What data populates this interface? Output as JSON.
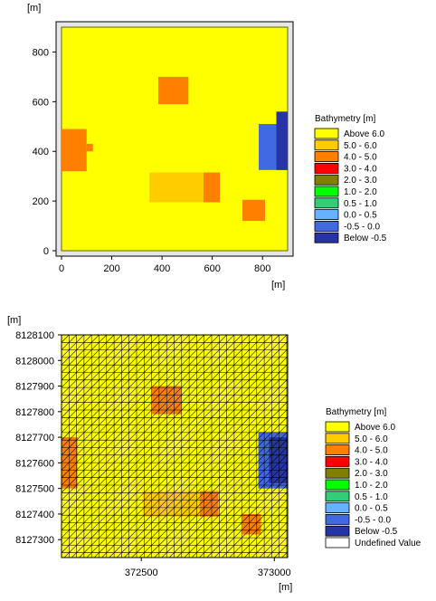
{
  "top_plot": {
    "y_unit_label": "[m]",
    "x_unit_label": "[m]"
  },
  "bottom_plot": {
    "y_unit_label": "[m]",
    "x_unit_label": "[m]"
  },
  "chart_data": [
    {
      "type": "heatmap",
      "title": "",
      "xlabel": "[m]",
      "ylabel": "[m]",
      "xlim": [
        0,
        900
      ],
      "ylim": [
        0,
        900
      ],
      "x_ticks": [
        "0",
        "200",
        "400",
        "600",
        "800"
      ],
      "x_tick_values": [
        0,
        200,
        400,
        600,
        800
      ],
      "y_ticks": [
        "0",
        "200",
        "400",
        "600",
        "800"
      ],
      "y_tick_values": [
        0,
        200,
        400,
        600,
        800
      ],
      "background_class": "Above 6.0",
      "regions": [
        {
          "class": "4.0 - 5.0",
          "x0": 385,
          "x1": 505,
          "y0": 590,
          "y1": 700
        },
        {
          "class": "4.0 - 5.0",
          "x0": 0,
          "x1": 100,
          "y0": 320,
          "y1": 490
        },
        {
          "class": "4.0 - 5.0",
          "x0": 100,
          "x1": 125,
          "y0": 400,
          "y1": 430
        },
        {
          "class": "5.0 - 6.0",
          "x0": 350,
          "x1": 565,
          "y0": 195,
          "y1": 315
        },
        {
          "class": "4.0 - 5.0",
          "x0": 565,
          "x1": 630,
          "y0": 195,
          "y1": 315
        },
        {
          "class": "4.0 - 5.0",
          "x0": 720,
          "x1": 810,
          "y0": 120,
          "y1": 205
        },
        {
          "class": "-0.5 - 0.0",
          "x0": 785,
          "x1": 900,
          "y0": 325,
          "y1": 510
        },
        {
          "class": "Below -0.5",
          "x0": 855,
          "x1": 900,
          "y0": 325,
          "y1": 560
        }
      ],
      "legend": {
        "title": "Bathymetry [m]",
        "position": "right",
        "entries": [
          {
            "label": "Above  6.0",
            "color": "#FFFF00"
          },
          {
            "label": "5.0 -  6.0",
            "color": "#FFCC00"
          },
          {
            "label": "4.0 -  5.0",
            "color": "#FF7F00"
          },
          {
            "label": "3.0 -  4.0",
            "color": "#FF0000"
          },
          {
            "label": "2.0 -  3.0",
            "color": "#808000"
          },
          {
            "label": "1.0 -  2.0",
            "color": "#00FF00"
          },
          {
            "label": "0.5 -  1.0",
            "color": "#33CC77"
          },
          {
            "label": "0.0 -  0.5",
            "color": "#66B2FF"
          },
          {
            "label": "-0.5 -  0.0",
            "color": "#4169E1"
          },
          {
            "label": "Below -0.5",
            "color": "#2634A6"
          }
        ]
      }
    },
    {
      "type": "heatmap",
      "title": "",
      "xlabel": "[m]",
      "ylabel": "[m]",
      "mesh": "triangular",
      "xlim": [
        372200,
        373050
      ],
      "ylim": [
        8127230,
        8128100
      ],
      "x_ticks": [
        "372500",
        "373000"
      ],
      "x_tick_values": [
        372500,
        373000
      ],
      "y_ticks": [
        "8128100",
        "8128000",
        "8127900",
        "8127800",
        "8127700",
        "8127600",
        "8127500",
        "8127400",
        "8127300"
      ],
      "y_tick_values": [
        8128100,
        8128000,
        8127900,
        8127800,
        8127700,
        8127600,
        8127500,
        8127400,
        8127300
      ],
      "background_class": "Above 6.0",
      "regions": [
        {
          "class": "4.0 - 5.0",
          "x0": 372540,
          "x1": 372650,
          "y0": 8127790,
          "y1": 8127900
        },
        {
          "class": "4.0 - 5.0",
          "x0": 372200,
          "x1": 372260,
          "y0": 8127500,
          "y1": 8127700
        },
        {
          "class": "5.0 - 6.0",
          "x0": 372505,
          "x1": 372720,
          "y0": 8127390,
          "y1": 8127490
        },
        {
          "class": "4.0 - 5.0",
          "x0": 372720,
          "x1": 372790,
          "y0": 8127390,
          "y1": 8127490
        },
        {
          "class": "4.0 - 5.0",
          "x0": 372880,
          "x1": 372950,
          "y0": 8127320,
          "y1": 8127400
        },
        {
          "class": "-0.5 - 0.0",
          "x0": 372940,
          "x1": 373050,
          "y0": 8127500,
          "y1": 8127720
        },
        {
          "class": "Below -0.5",
          "x0": 372980,
          "x1": 373050,
          "y0": 8127520,
          "y1": 8127700
        }
      ],
      "legend": {
        "title": "Bathymetry [m]",
        "position": "right",
        "entries": [
          {
            "label": "Above  6.0",
            "color": "#FFFF00"
          },
          {
            "label": "5.0 -  6.0",
            "color": "#FFCC00"
          },
          {
            "label": "4.0 -  5.0",
            "color": "#FF7F00"
          },
          {
            "label": "3.0 -  4.0",
            "color": "#FF0000"
          },
          {
            "label": "2.0 -  3.0",
            "color": "#808000"
          },
          {
            "label": "1.0 -  2.0",
            "color": "#00FF00"
          },
          {
            "label": "0.5 -  1.0",
            "color": "#33CC77"
          },
          {
            "label": "0.0 -  0.5",
            "color": "#66B2FF"
          },
          {
            "label": "-0.5 -  0.0",
            "color": "#4169E1"
          },
          {
            "label": "Below -0.5",
            "color": "#2634A6"
          },
          {
            "label": "Undefined Value",
            "color": "#FFFFFF"
          }
        ]
      }
    }
  ]
}
